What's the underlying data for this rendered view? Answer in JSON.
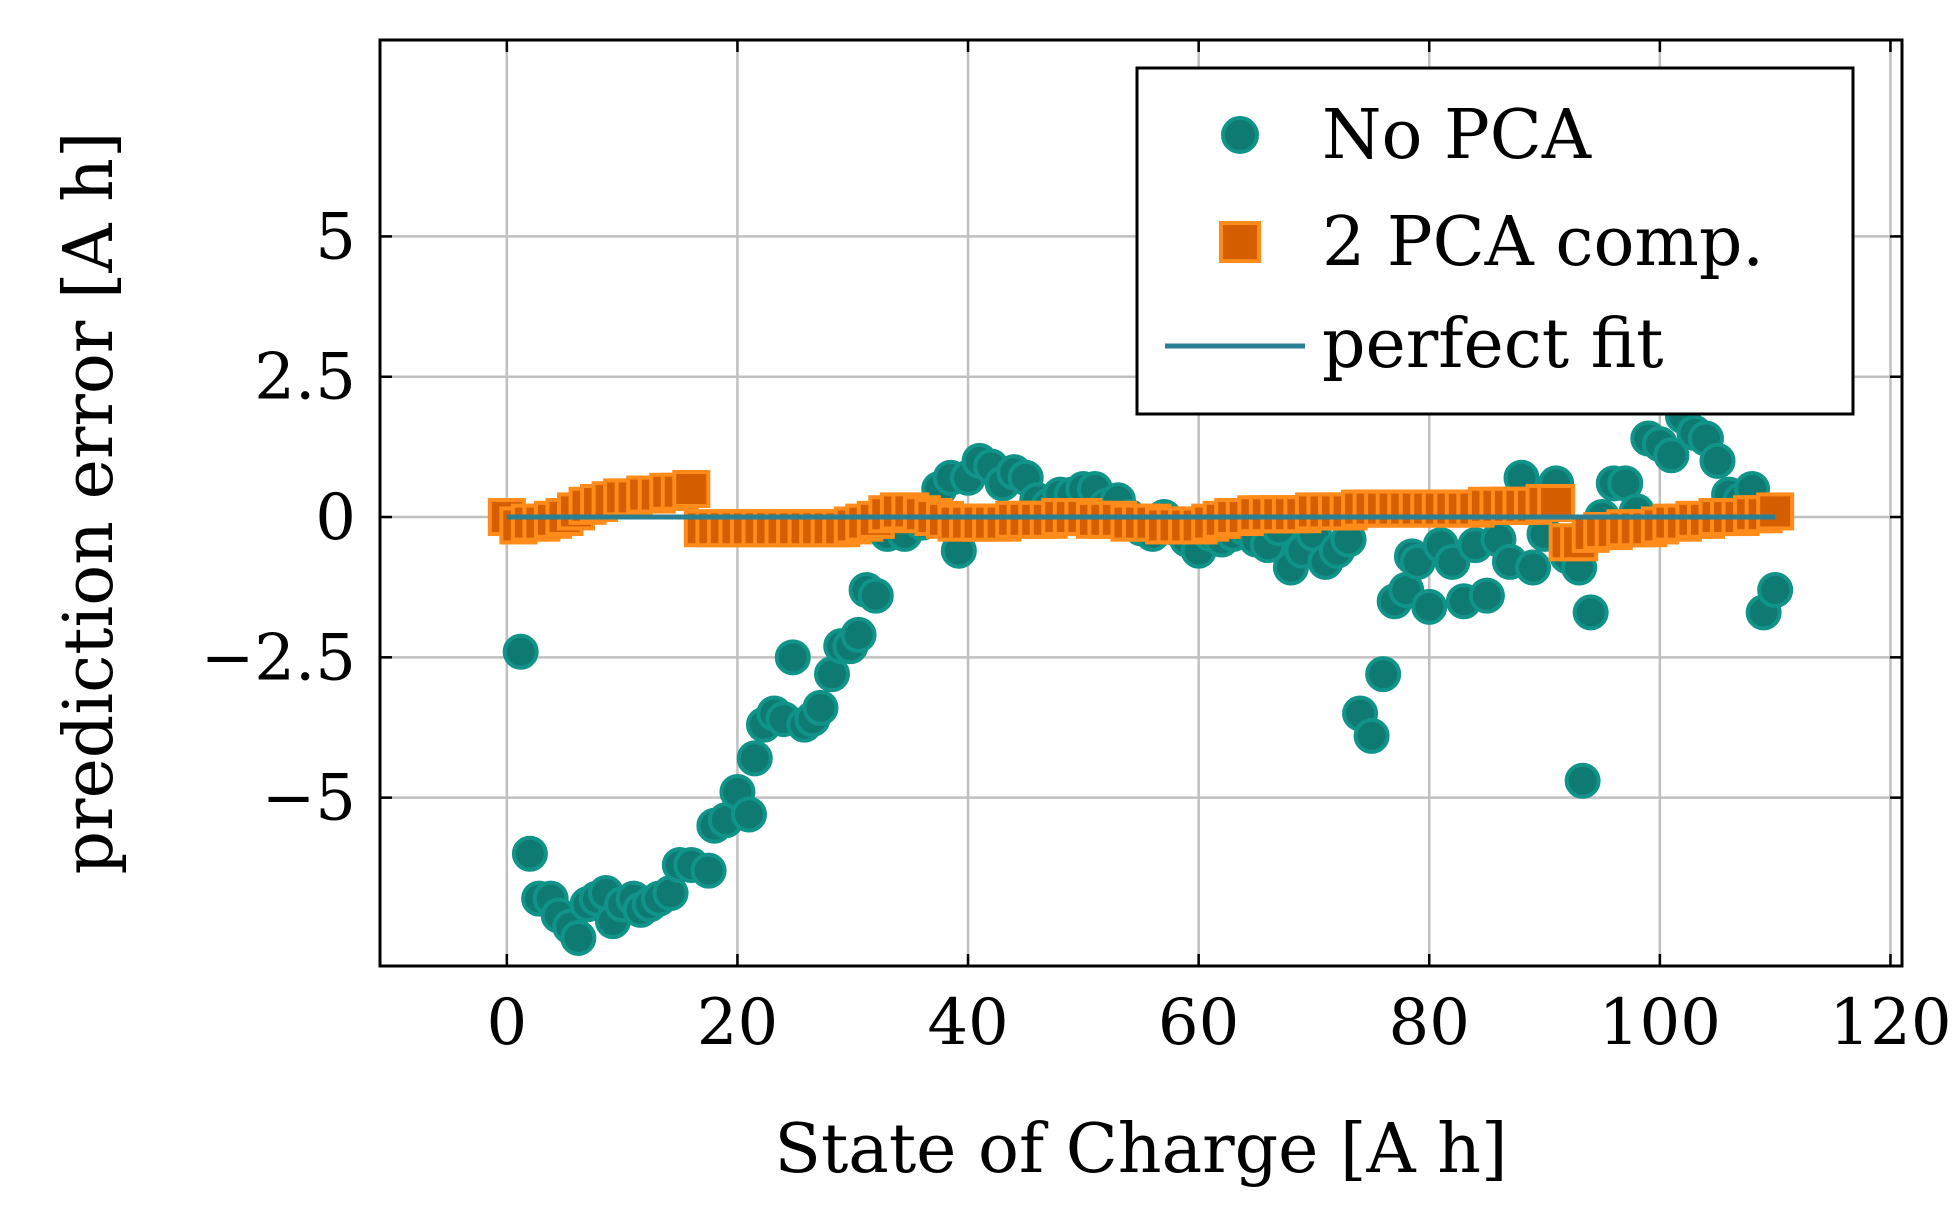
{
  "chart_data": {
    "type": "scatter",
    "title": "",
    "xlabel": "State of Charge [A h]",
    "ylabel": "prediction error [A h]",
    "xlim": [
      -11,
      121
    ],
    "ylim": [
      -8,
      8.5
    ],
    "xticks": [
      0,
      20,
      40,
      60,
      80,
      100,
      120
    ],
    "xtick_labels": [
      "0",
      "20",
      "40",
      "60",
      "80",
      "100",
      "120"
    ],
    "yticks": [
      -5,
      -2.5,
      0,
      2.5,
      5
    ],
    "ytick_labels": [
      "−5",
      "−2.5",
      "0",
      "2.5",
      "5"
    ],
    "grid": true,
    "legend_position": "top-right",
    "series": [
      {
        "name": "No PCA",
        "marker": "circle",
        "color": "#0f7a72",
        "edge_color": "#10948a",
        "points": [
          [
            1.2,
            -2.4
          ],
          [
            2,
            -6.0
          ],
          [
            2.8,
            -6.8
          ],
          [
            3.8,
            -6.8
          ],
          [
            4.5,
            -7.1
          ],
          [
            5.5,
            -7.3
          ],
          [
            6.2,
            -7.5
          ],
          [
            7,
            -6.9
          ],
          [
            7.8,
            -6.8
          ],
          [
            8.6,
            -6.7
          ],
          [
            9.2,
            -7.2
          ],
          [
            10,
            -6.9
          ],
          [
            11,
            -6.8
          ],
          [
            11.6,
            -7.0
          ],
          [
            12.4,
            -6.9
          ],
          [
            13.2,
            -6.8
          ],
          [
            14.2,
            -6.7
          ],
          [
            15,
            -6.2
          ],
          [
            16,
            -6.2
          ],
          [
            17.5,
            -6.3
          ],
          [
            18,
            -5.5
          ],
          [
            19,
            -5.4
          ],
          [
            20,
            -4.9
          ],
          [
            21,
            -5.3
          ],
          [
            21.5,
            -4.3
          ],
          [
            22.3,
            -3.7
          ],
          [
            23.2,
            -3.5
          ],
          [
            24,
            -3.6
          ],
          [
            24.8,
            -2.5
          ],
          [
            25.8,
            -3.7
          ],
          [
            26.5,
            -3.6
          ],
          [
            27.2,
            -3.4
          ],
          [
            28.2,
            -2.8
          ],
          [
            29,
            -2.3
          ],
          [
            29.8,
            -2.3
          ],
          [
            30.5,
            -2.1
          ],
          [
            31.2,
            -1.3
          ],
          [
            32,
            -1.4
          ],
          [
            33,
            -0.3
          ],
          [
            34.5,
            -0.3
          ],
          [
            36,
            -0.1
          ],
          [
            37.5,
            0.5
          ],
          [
            38.5,
            0.7
          ],
          [
            39.2,
            -0.6
          ],
          [
            40,
            0.7
          ],
          [
            41,
            1.0
          ],
          [
            42,
            0.9
          ],
          [
            43,
            0.6
          ],
          [
            44,
            0.8
          ],
          [
            45,
            0.7
          ],
          [
            46,
            0.3
          ],
          [
            47,
            0.2
          ],
          [
            48,
            0.4
          ],
          [
            49,
            0.4
          ],
          [
            50,
            0.5
          ],
          [
            51,
            0.5
          ],
          [
            52,
            0.2
          ],
          [
            53,
            0.3
          ],
          [
            54,
            0.0
          ],
          [
            55,
            -0.2
          ],
          [
            56,
            -0.3
          ],
          [
            57,
            0.0
          ],
          [
            58,
            -0.2
          ],
          [
            59,
            -0.4
          ],
          [
            60,
            -0.6
          ],
          [
            61,
            -0.3
          ],
          [
            62,
            -0.4
          ],
          [
            63,
            -0.3
          ],
          [
            64,
            -0.2
          ],
          [
            65,
            -0.4
          ],
          [
            66,
            -0.5
          ],
          [
            67,
            -0.2
          ],
          [
            68,
            -0.9
          ],
          [
            69,
            -0.6
          ],
          [
            70,
            -0.3
          ],
          [
            71,
            -0.8
          ],
          [
            72,
            -0.6
          ],
          [
            73,
            -0.4
          ],
          [
            74,
            -3.5
          ],
          [
            75,
            -3.9
          ],
          [
            76,
            -2.8
          ],
          [
            77,
            -1.5
          ],
          [
            78,
            -1.3
          ],
          [
            78.5,
            -0.7
          ],
          [
            79,
            -0.8
          ],
          [
            80,
            -1.6
          ],
          [
            81,
            -0.5
          ],
          [
            82,
            -0.8
          ],
          [
            83,
            -1.5
          ],
          [
            84,
            -0.5
          ],
          [
            85,
            -1.4
          ],
          [
            86,
            -0.4
          ],
          [
            87,
            -0.8
          ],
          [
            88,
            0.7
          ],
          [
            89,
            -0.9
          ],
          [
            90,
            -0.3
          ],
          [
            91,
            0.6
          ],
          [
            92,
            -0.7
          ],
          [
            93,
            -0.9
          ],
          [
            93.3,
            -4.7
          ],
          [
            94,
            -1.7
          ],
          [
            95,
            0.0
          ],
          [
            96,
            0.6
          ],
          [
            97,
            0.6
          ],
          [
            98,
            0.1
          ],
          [
            99,
            1.4
          ],
          [
            100,
            1.3
          ],
          [
            101,
            1.1
          ],
          [
            102,
            1.8
          ],
          [
            103,
            1.5
          ],
          [
            104,
            1.4
          ],
          [
            105,
            1.0
          ],
          [
            106,
            0.4
          ],
          [
            107,
            0.3
          ],
          [
            108,
            0.5
          ],
          [
            109,
            -1.7
          ],
          [
            110,
            -1.3
          ]
        ]
      },
      {
        "name": "2 PCA comp.",
        "marker": "square",
        "color": "#d55e00",
        "edge_color": "#ff8c1a",
        "points": [
          [
            0,
            0.0
          ],
          [
            1,
            -0.15
          ],
          [
            2,
            -0.1
          ],
          [
            3,
            -0.1
          ],
          [
            4,
            -0.05
          ],
          [
            5,
            0.0
          ],
          [
            6,
            0.1
          ],
          [
            7,
            0.2
          ],
          [
            8,
            0.25
          ],
          [
            9,
            0.3
          ],
          [
            10,
            0.35
          ],
          [
            11,
            0.35
          ],
          [
            12,
            0.4
          ],
          [
            13,
            0.4
          ],
          [
            14,
            0.45
          ],
          [
            15,
            0.45
          ],
          [
            16,
            0.5
          ],
          [
            17,
            -0.2
          ],
          [
            18,
            -0.2
          ],
          [
            19,
            -0.2
          ],
          [
            20,
            -0.2
          ],
          [
            21,
            -0.2
          ],
          [
            22,
            -0.2
          ],
          [
            23,
            -0.2
          ],
          [
            24,
            -0.2
          ],
          [
            25,
            -0.2
          ],
          [
            26,
            -0.2
          ],
          [
            27,
            -0.2
          ],
          [
            28,
            -0.2
          ],
          [
            29,
            -0.2
          ],
          [
            30,
            -0.15
          ],
          [
            31,
            -0.1
          ],
          [
            32,
            -0.05
          ],
          [
            33,
            0.05
          ],
          [
            34,
            0.1
          ],
          [
            35,
            0.1
          ],
          [
            36,
            0.05
          ],
          [
            37,
            0.0
          ],
          [
            38,
            -0.05
          ],
          [
            39,
            -0.1
          ],
          [
            40,
            -0.1
          ],
          [
            41,
            -0.1
          ],
          [
            42,
            -0.1
          ],
          [
            43,
            -0.1
          ],
          [
            44,
            -0.05
          ],
          [
            45,
            -0.05
          ],
          [
            46,
            -0.05
          ],
          [
            47,
            -0.05
          ],
          [
            48,
            0.0
          ],
          [
            49,
            0.0
          ],
          [
            50,
            0.0
          ],
          [
            51,
            -0.05
          ],
          [
            52,
            -0.05
          ],
          [
            53,
            -0.05
          ],
          [
            54,
            -0.1
          ],
          [
            55,
            -0.1
          ],
          [
            56,
            -0.1
          ],
          [
            57,
            -0.15
          ],
          [
            58,
            -0.15
          ],
          [
            59,
            -0.15
          ],
          [
            60,
            -0.15
          ],
          [
            61,
            -0.1
          ],
          [
            62,
            -0.05
          ],
          [
            63,
            0.0
          ],
          [
            64,
            0.0
          ],
          [
            65,
            0.05
          ],
          [
            66,
            0.05
          ],
          [
            67,
            0.05
          ],
          [
            68,
            0.05
          ],
          [
            69,
            0.05
          ],
          [
            70,
            0.1
          ],
          [
            71,
            0.1
          ],
          [
            72,
            0.1
          ],
          [
            73,
            0.1
          ],
          [
            74,
            0.15
          ],
          [
            75,
            0.15
          ],
          [
            76,
            0.15
          ],
          [
            77,
            0.15
          ],
          [
            78,
            0.15
          ],
          [
            79,
            0.15
          ],
          [
            80,
            0.15
          ],
          [
            81,
            0.15
          ],
          [
            82,
            0.15
          ],
          [
            83,
            0.15
          ],
          [
            84,
            0.15
          ],
          [
            85,
            0.2
          ],
          [
            86,
            0.2
          ],
          [
            87,
            0.2
          ],
          [
            88,
            0.2
          ],
          [
            89,
            0.2
          ],
          [
            90,
            0.25
          ],
          [
            91,
            0.25
          ],
          [
            92,
            -0.45
          ],
          [
            93,
            -0.45
          ],
          [
            94,
            -0.3
          ],
          [
            95,
            -0.25
          ],
          [
            96,
            -0.25
          ],
          [
            97,
            -0.2
          ],
          [
            98,
            -0.2
          ],
          [
            99,
            -0.2
          ],
          [
            100,
            -0.15
          ],
          [
            101,
            -0.1
          ],
          [
            102,
            -0.1
          ],
          [
            103,
            -0.05
          ],
          [
            104,
            -0.05
          ],
          [
            105,
            0.0
          ],
          [
            106,
            0.0
          ],
          [
            107,
            0.0
          ],
          [
            108,
            0.05
          ],
          [
            109,
            0.05
          ],
          [
            110,
            0.1
          ]
        ]
      },
      {
        "name": "perfect fit",
        "marker": "line",
        "color": "#2a7f93",
        "points": [
          [
            0,
            0
          ],
          [
            110,
            0
          ]
        ]
      }
    ]
  }
}
